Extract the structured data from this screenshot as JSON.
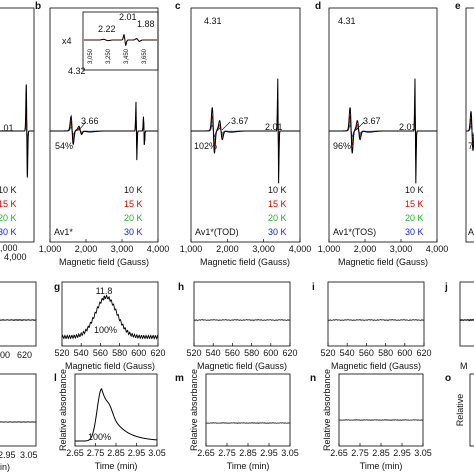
{
  "panels": {
    "a": {
      "label": "",
      "ann": ".01",
      "legend": [
        "10 K",
        "15 K",
        "20 K",
        "30 K"
      ],
      "xticks": [
        ",000"
      ],
      "xticks_right": [
        "4,000"
      ],
      "xlabel": ""
    },
    "b": {
      "label": "b",
      "sample": "Av1*",
      "legend": [
        "10 K",
        "15 K",
        "20 K",
        "30 K"
      ],
      "peaks": [
        "4.32",
        "3.66",
        "54%"
      ],
      "inset": {
        "mult": "x4",
        "peaks": [
          "2.22",
          "2.01",
          "1.88"
        ],
        "ticks": [
          "3,050",
          "3,250",
          "3,450",
          "3,650"
        ]
      },
      "xticks": [
        "1,000",
        "2,000",
        "3,000",
        "4,000"
      ],
      "xlabel": "Magnetic field (Gauss)"
    },
    "c": {
      "label": "c",
      "sample": "Av1*(TOD)",
      "legend": [
        "10 K",
        "15 K",
        "20 K",
        "30 K"
      ],
      "peaks": [
        "4.31",
        "3.67",
        "2.01",
        "102%"
      ],
      "xticks": [
        "1,000",
        "2,000",
        "3,000",
        "4,000"
      ],
      "xlabel": "Magnetic field (Gauss)"
    },
    "d": {
      "label": "d",
      "sample": "Av1*(TOS)",
      "legend": [
        "10 K",
        "15 K",
        "20 K",
        "30 K"
      ],
      "peaks": [
        "4.31",
        "3.67",
        "2.01",
        "96%"
      ],
      "xticks": [
        "1,000",
        "2,000",
        "3,000",
        "4,000"
      ],
      "xlabel": "Magnetic field (Gauss)"
    },
    "e": {
      "label": "e",
      "sample": "Av",
      "peaks": [
        "7"
      ]
    },
    "f": {
      "xticks": [
        "00",
        "620"
      ]
    },
    "g": {
      "label": "g",
      "peak": "11.8",
      "pct": "100%",
      "xticks": [
        "520",
        "540",
        "560",
        "580",
        "600",
        "620"
      ],
      "xlabel": "Magnetic field (Gauss)"
    },
    "h": {
      "label": "h",
      "xticks": [
        "520",
        "540",
        "560",
        "580",
        "600",
        "620"
      ],
      "xlabel": "Magnetic field (Gauss)"
    },
    "i": {
      "label": "i",
      "xticks": [
        "520",
        "540",
        "560",
        "580",
        "600",
        "620"
      ],
      "xlabel": "Magnetic field (Gauss)"
    },
    "j": {
      "label": "j",
      "xlabel": "M"
    },
    "k": {
      "xticks": [
        "2.95",
        "3.05"
      ],
      "xlabel": "in)"
    },
    "l": {
      "label": "l",
      "ylabel": "Relative absorbance",
      "pct": "100%",
      "xticks": [
        "2.65",
        "2.75",
        "2.85",
        "2.95",
        "3.05"
      ],
      "xlabel": "Time (min)"
    },
    "m": {
      "label": "m",
      "ylabel": "Relative absorbance",
      "xticks": [
        "2.65",
        "2.75",
        "2.85",
        "2.95",
        "3.05"
      ],
      "xlabel": "Time (min)"
    },
    "n": {
      "label": "n",
      "ylabel": "Relative absorbance",
      "xticks": [
        "2.65",
        "2.75",
        "2.85",
        "2.95",
        "3.05"
      ],
      "xlabel": "Time (min)"
    },
    "o": {
      "label": "o",
      "ylabel": "Relative"
    }
  },
  "colors": {
    "t10": "#000000",
    "t15": "#d40000",
    "t20": "#22b022",
    "t30": "#1a22d8"
  },
  "chart_data": [
    {
      "type": "line",
      "panel": "b",
      "xlabel": "Magnetic field (Gauss)",
      "xlim": [
        1000,
        4000
      ],
      "series": [
        {
          "name": "10 K"
        },
        {
          "name": "15 K"
        },
        {
          "name": "20 K"
        },
        {
          "name": "30 K"
        }
      ],
      "peaks": [
        4.32,
        3.66
      ],
      "fraction": "54%"
    },
    {
      "type": "line",
      "panel": "c",
      "xlabel": "Magnetic field (Gauss)",
      "xlim": [
        1000,
        4000
      ],
      "series": [
        {
          "name": "10 K"
        },
        {
          "name": "15 K"
        },
        {
          "name": "20 K"
        },
        {
          "name": "30 K"
        }
      ],
      "peaks": [
        4.31,
        3.67,
        2.01
      ],
      "fraction": "102%"
    },
    {
      "type": "line",
      "panel": "d",
      "xlabel": "Magnetic field (Gauss)",
      "xlim": [
        1000,
        4000
      ],
      "series": [
        {
          "name": "10 K"
        },
        {
          "name": "15 K"
        },
        {
          "name": "20 K"
        },
        {
          "name": "30 K"
        }
      ],
      "peaks": [
        4.31,
        3.67,
        2.01
      ],
      "fraction": "96%"
    },
    {
      "type": "line",
      "panel": "g",
      "xlabel": "Magnetic field (Gauss)",
      "xlim": [
        520,
        620
      ],
      "peak_label": 11.8,
      "peak_x": 566,
      "fraction": "100%"
    },
    {
      "type": "line",
      "panel": "h",
      "xlabel": "Magnetic field (Gauss)",
      "xlim": [
        520,
        620
      ]
    },
    {
      "type": "line",
      "panel": "i",
      "xlabel": "Magnetic field (Gauss)",
      "xlim": [
        520,
        620
      ]
    },
    {
      "type": "line",
      "panel": "l",
      "xlabel": "Time (min)",
      "ylabel": "Relative absorbance",
      "xlim": [
        2.65,
        3.05
      ],
      "peak_x": 2.78,
      "fraction": "100%"
    },
    {
      "type": "line",
      "panel": "m",
      "xlabel": "Time (min)",
      "ylabel": "Relative absorbance",
      "xlim": [
        2.65,
        3.05
      ]
    },
    {
      "type": "line",
      "panel": "n",
      "xlabel": "Time (min)",
      "ylabel": "Relative absorbance",
      "xlim": [
        2.65,
        3.05
      ]
    }
  ]
}
